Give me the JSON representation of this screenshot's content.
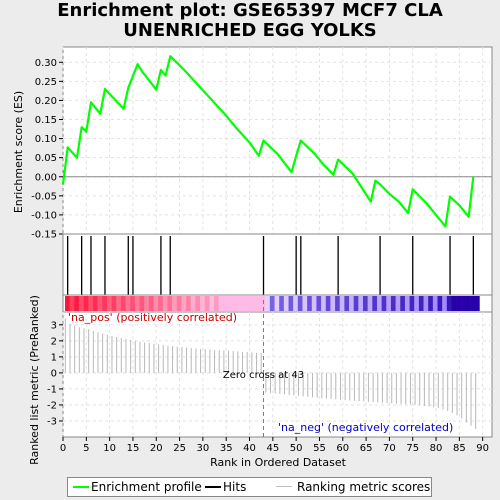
{
  "header": {
    "title_line1": "Enrichment plot: GSE65397 MCF7 CLA",
    "title_line2": "UNENRICHED EGG YOLKS"
  },
  "legend": {
    "items": [
      {
        "label": "Enrichment profile",
        "color": "#00ff00"
      },
      {
        "label": "Hits",
        "color": "#000000"
      },
      {
        "label": "Ranking metric scores",
        "color": "#c0c0c0"
      }
    ]
  },
  "chart_data": [
    {
      "type": "line",
      "name": "enrichment-profile",
      "ylabel": "Enrichment score (ES)",
      "ylim": [
        -0.15,
        0.34
      ],
      "yticks": [
        -0.15,
        -0.1,
        -0.05,
        0.0,
        0.05,
        0.1,
        0.15,
        0.2,
        0.25,
        0.3
      ],
      "ytick_labels": [
        "-0.15",
        "-0.10",
        "-0.05",
        "0.00",
        "0.05",
        "0.10",
        "0.15",
        "0.20",
        "0.25",
        "0.30"
      ],
      "grid": true,
      "series": [
        {
          "color": "#00ff00",
          "x": [
            0,
            1,
            3,
            4,
            5,
            6,
            8,
            9,
            13,
            14,
            16,
            17,
            18,
            20,
            21,
            22,
            23,
            26,
            29,
            32,
            35,
            37,
            40,
            42,
            43,
            46,
            49,
            50,
            51,
            54,
            56,
            58,
            59,
            62,
            66,
            67,
            68,
            70,
            72,
            74,
            75,
            78,
            80,
            82,
            83,
            85,
            87,
            88
          ],
          "y": [
            -0.02,
            0.077,
            0.05,
            0.13,
            0.118,
            0.195,
            0.165,
            0.23,
            0.178,
            0.233,
            0.295,
            0.275,
            0.26,
            0.228,
            0.28,
            0.265,
            0.316,
            0.28,
            0.24,
            0.2,
            0.16,
            0.13,
            0.09,
            0.055,
            0.095,
            0.06,
            0.012,
            0.055,
            0.095,
            0.06,
            0.03,
            0.005,
            0.045,
            0.01,
            -0.065,
            -0.01,
            -0.02,
            -0.045,
            -0.065,
            -0.095,
            -0.033,
            -0.07,
            -0.1,
            -0.13,
            -0.052,
            -0.075,
            -0.105,
            0.0
          ]
        }
      ]
    },
    {
      "type": "scatter",
      "name": "hits",
      "hit_positions": [
        1,
        4,
        6,
        9,
        14,
        15,
        21,
        23,
        43,
        50,
        51,
        59,
        68,
        75,
        83,
        88
      ]
    },
    {
      "type": "bar",
      "name": "ranking-metric",
      "ylabel": "Ranked list metric (PreRanked)",
      "xlabel": "Rank in Ordered Dataset",
      "xlim": [
        0,
        92
      ],
      "xticks": [
        0,
        5,
        10,
        15,
        20,
        25,
        30,
        35,
        40,
        45,
        50,
        55,
        60,
        65,
        70,
        75,
        80,
        85,
        90
      ],
      "ylim": [
        -4.0,
        3.8
      ],
      "yticks": [
        -3,
        -2,
        -1,
        0,
        1,
        2,
        3
      ],
      "ytick_labels": [
        "-3",
        "-2",
        "-1",
        "0",
        "1",
        "2",
        "3"
      ],
      "grid": true,
      "values": [
        3.4,
        3.05,
        2.95,
        2.85,
        2.78,
        2.72,
        2.62,
        2.52,
        2.45,
        2.38,
        2.3,
        2.24,
        2.18,
        2.12,
        2.06,
        2.0,
        1.95,
        1.9,
        1.86,
        1.82,
        1.78,
        1.74,
        1.7,
        1.67,
        1.64,
        1.61,
        1.58,
        1.55,
        1.52,
        1.5,
        1.48,
        1.46,
        1.44,
        1.42,
        1.4,
        1.38,
        1.36,
        1.34,
        1.32,
        1.3,
        1.28,
        1.26,
        1.24,
        -1.22,
        -1.25,
        -1.28,
        -1.31,
        -1.34,
        -1.37,
        -1.4,
        -1.43,
        -1.46,
        -1.49,
        -1.52,
        -1.55,
        -1.58,
        -1.6,
        -1.62,
        -1.65,
        -1.68,
        -1.7,
        -1.72,
        -1.74,
        -1.76,
        -1.78,
        -1.8,
        -1.82,
        -1.84,
        -1.86,
        -1.88,
        -1.9,
        -1.92,
        -1.94,
        -1.96,
        -1.98,
        -2.0,
        -2.03,
        -2.06,
        -2.1,
        -2.15,
        -2.2,
        -2.28,
        -2.38,
        -2.5,
        -2.65,
        -2.85,
        -3.1,
        -3.3,
        -3.5
      ],
      "zero_cross": 43,
      "annotations": {
        "zero_cross_label": "Zero cross at 43",
        "pos_label": "'na_pos' (positively correlated)",
        "neg_label": "'na_neg' (negatively correlated)"
      }
    }
  ]
}
